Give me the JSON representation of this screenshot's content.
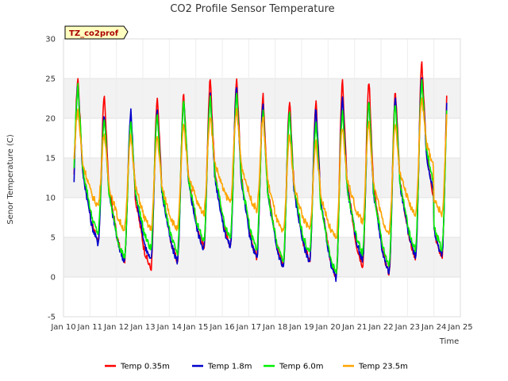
{
  "chart_data": {
    "type": "line",
    "title": "CO2 Profile Sensor Temperature",
    "xlabel": "Time",
    "ylabel": "Senor Temperature (C)",
    "site_badge": "TZ_co2prof",
    "xlim": [
      10,
      25
    ],
    "ylim": [
      -5,
      30
    ],
    "x_ticks": [
      10,
      11,
      12,
      13,
      14,
      15,
      16,
      17,
      18,
      19,
      20,
      21,
      22,
      23,
      24,
      25
    ],
    "x_tick_labels": [
      "Jan 10",
      "Jan 11",
      "Jan 12",
      "Jan 13",
      "Jan 14",
      "Jan 15",
      "Jan 16",
      "Jan 17",
      "Jan 18",
      "Jan 19",
      "Jan 20",
      "Jan 21",
      "Jan 22",
      "Jan 23",
      "Jan 24",
      "Jan 25"
    ],
    "y_ticks": [
      -5,
      0,
      5,
      10,
      15,
      20,
      25,
      30
    ],
    "y_tick_labels": [
      "-5",
      "0",
      "5",
      "10",
      "15",
      "20",
      "25",
      "30"
    ],
    "grid": true,
    "legend_position": "bottom",
    "x_range_of_data": [
      10.4,
      24.5
    ],
    "daily_peak_day_fraction": 0.55,
    "series": [
      {
        "name": "Temp 0.35m",
        "color": "#ff0000",
        "daily_max": [
          25.0,
          22.5,
          20.5,
          22.4,
          23.0,
          24.8,
          25.0,
          22.8,
          22.0,
          21.8,
          24.5,
          24.7,
          23.5,
          27.0
        ],
        "daily_min": [
          6.0,
          4.5,
          2.0,
          1.0,
          2.0,
          3.8,
          4.0,
          2.5,
          1.5,
          2.0,
          0.0,
          1.5,
          0.5,
          2.5,
          6.0
        ]
      },
      {
        "name": "Temp 1.8m",
        "color": "#0000cc",
        "daily_max": [
          24.2,
          20.5,
          20.8,
          21.0,
          22.0,
          23.0,
          23.8,
          21.5,
          21.0,
          21.2,
          22.5,
          22.2,
          22.5,
          25.3
        ],
        "daily_min": [
          6.0,
          4.3,
          2.0,
          2.0,
          2.0,
          3.6,
          3.8,
          2.3,
          1.2,
          2.0,
          -0.2,
          2.2,
          0.6,
          2.7,
          7.0
        ]
      },
      {
        "name": "Temp 6.0m",
        "color": "#00ee00",
        "daily_max": [
          24.0,
          20.0,
          19.5,
          20.5,
          22.0,
          22.5,
          23.0,
          20.8,
          20.5,
          19.5,
          21.0,
          22.0,
          22.0,
          24.5
        ],
        "daily_min": [
          8.5,
          5.5,
          2.5,
          3.5,
          3.0,
          4.5,
          5.0,
          3.5,
          2.0,
          3.0,
          0.5,
          3.0,
          1.5,
          3.5,
          9.0
        ]
      },
      {
        "name": "Temp 23.5m",
        "color": "#ffa500",
        "daily_max": [
          21.0,
          18.0,
          18.0,
          17.8,
          19.0,
          20.3,
          21.0,
          20.0,
          17.8,
          17.0,
          18.8,
          19.5,
          19.2,
          22.5
        ],
        "daily_min": [
          11.5,
          9.0,
          6.0,
          6.0,
          6.0,
          8.0,
          9.5,
          8.5,
          5.5,
          6.0,
          4.8,
          7.0,
          5.5,
          8.0,
          12.0
        ]
      }
    ]
  }
}
